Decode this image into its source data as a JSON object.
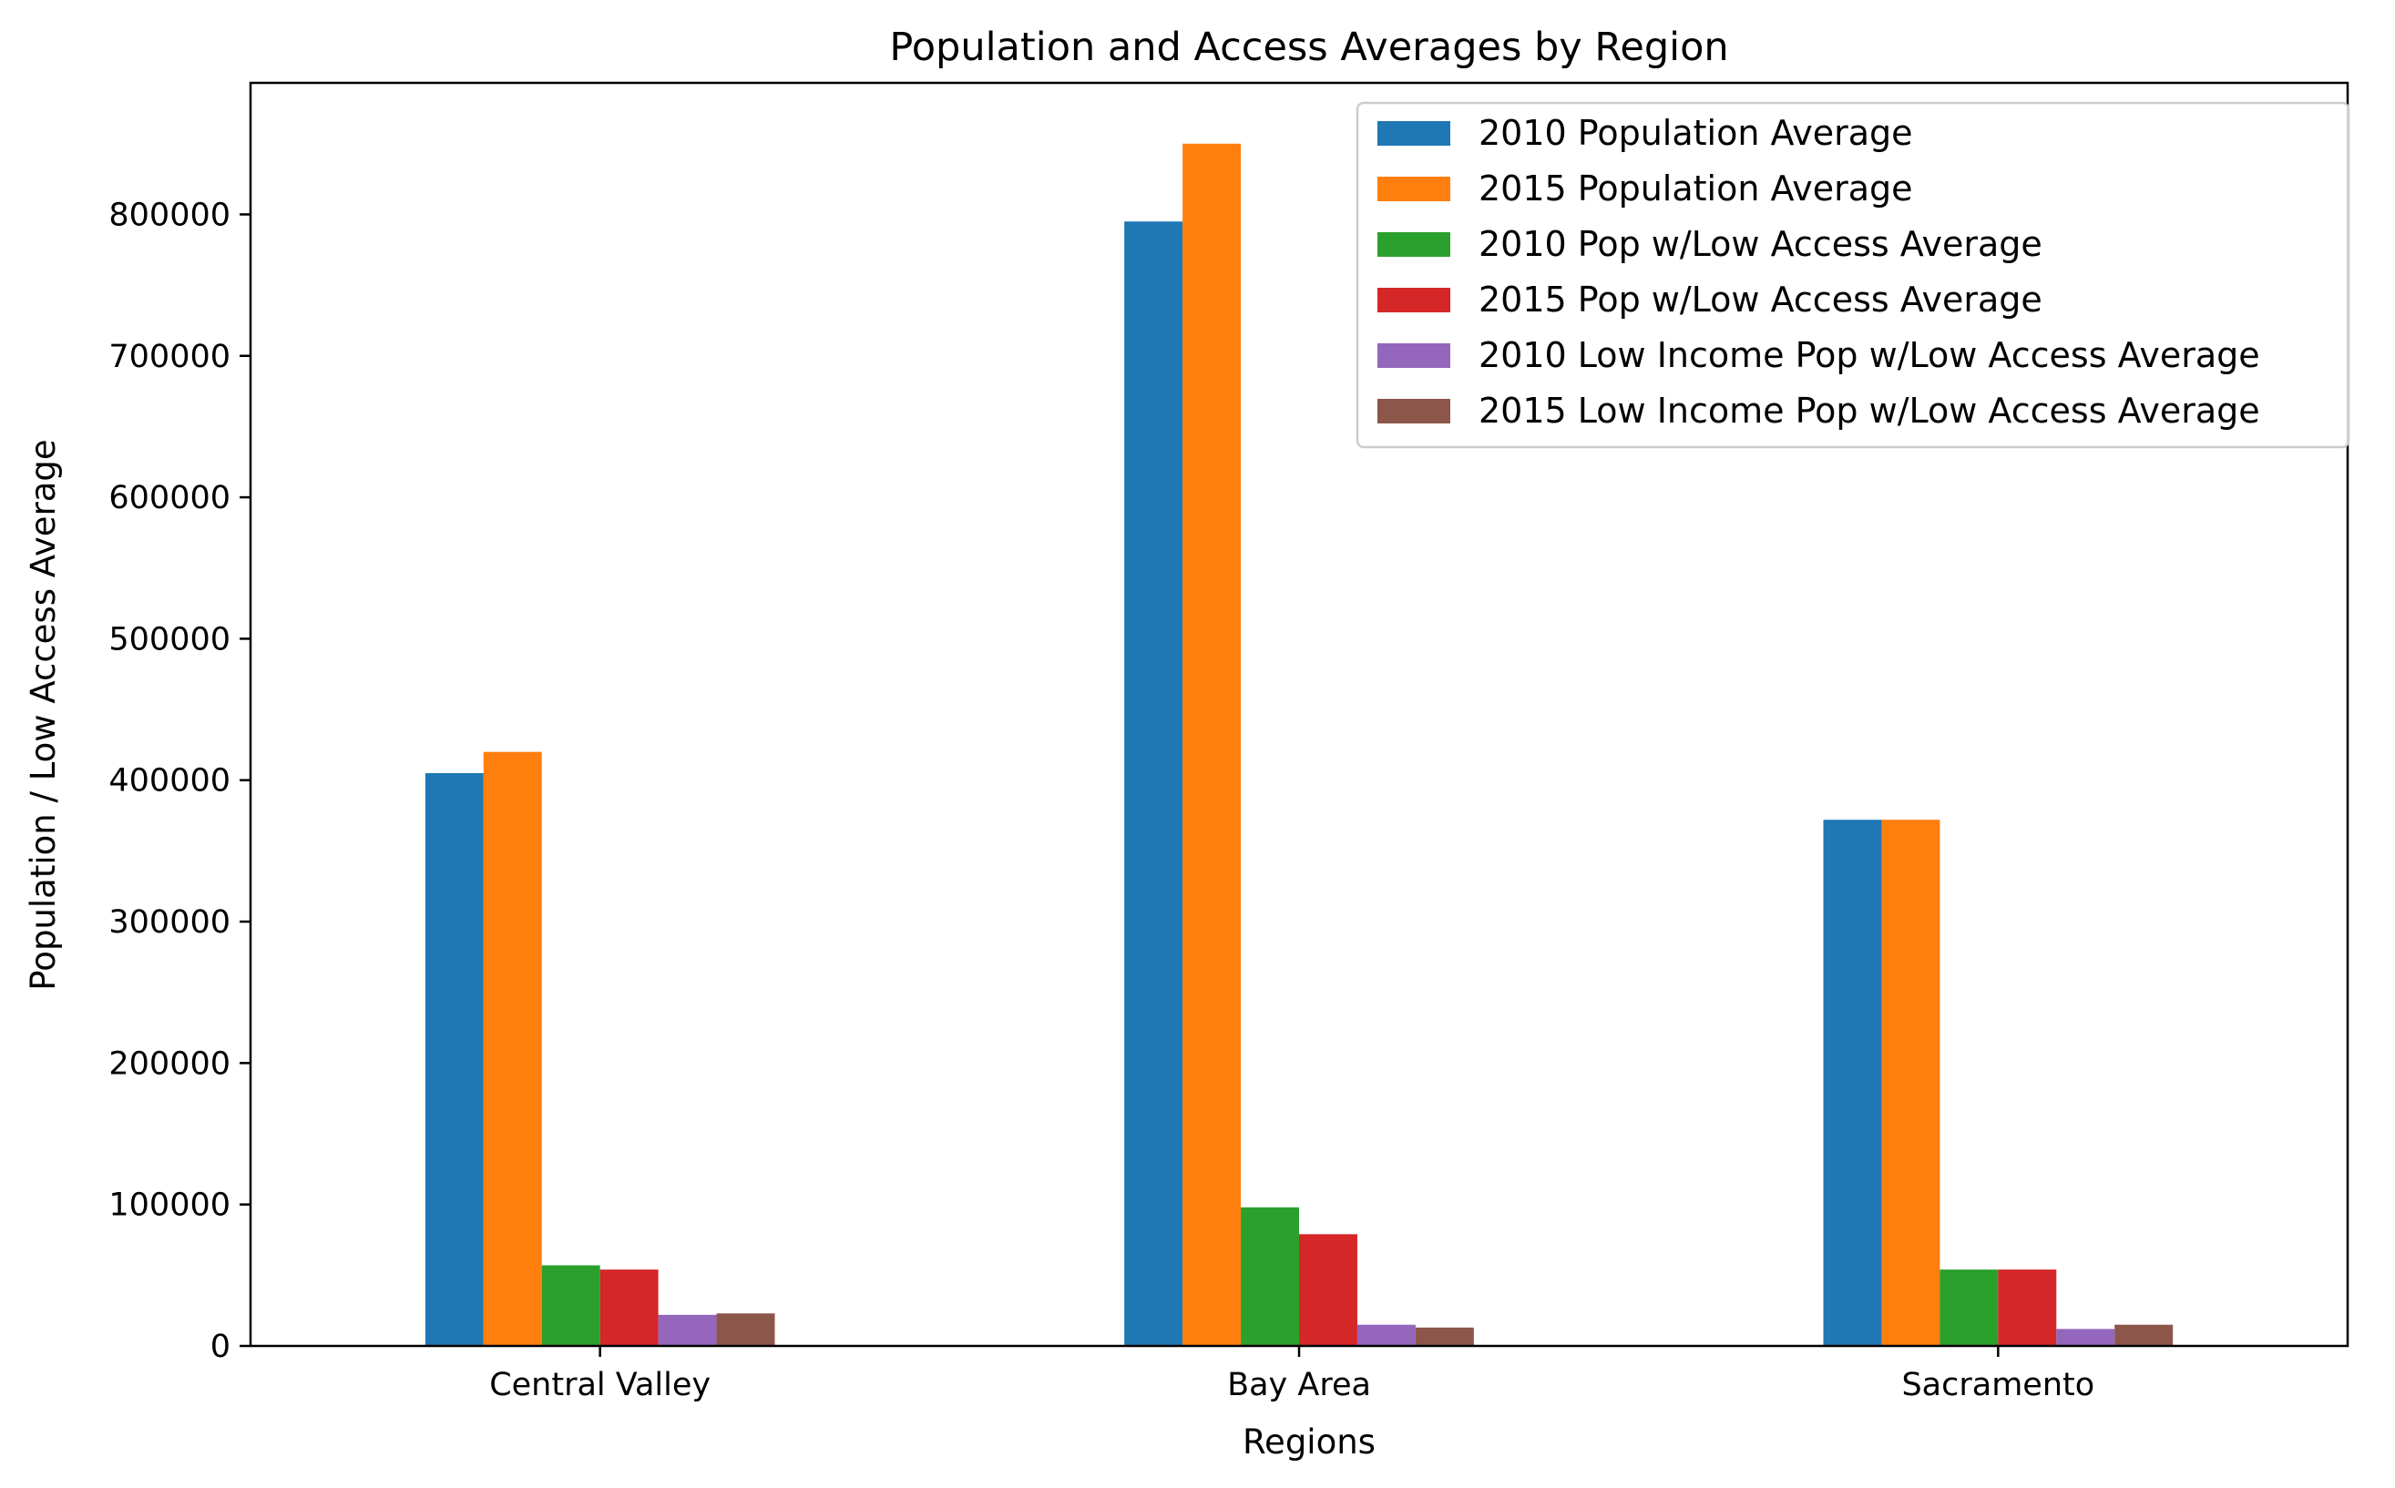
{
  "chart_data": {
    "type": "bar",
    "title": "Population and Access Averages by Region",
    "xlabel": "Regions",
    "ylabel": "Population / Low Access Average",
    "categories": [
      "Central Valley",
      "Bay Area",
      "Sacramento"
    ],
    "ylim": [
      0,
      893000
    ],
    "yticks": [
      0,
      100000,
      200000,
      300000,
      400000,
      500000,
      600000,
      700000,
      800000
    ],
    "ytick_labels": [
      "0",
      "100000",
      "200000",
      "300000",
      "400000",
      "500000",
      "600000",
      "700000",
      "800000"
    ],
    "grid": false,
    "legend_position": "top-right",
    "series": [
      {
        "name": "2010 Population Average",
        "color": "#1f77b4",
        "values": [
          405000,
          795000,
          372000
        ]
      },
      {
        "name": "2015 Population Average",
        "color": "#ff7f0e",
        "values": [
          420000,
          850000,
          372000
        ]
      },
      {
        "name": "2010 Pop w/Low Access Average",
        "color": "#2ca02c",
        "values": [
          57000,
          98000,
          54000
        ]
      },
      {
        "name": "2015 Pop w/Low Access Average",
        "color": "#d62728",
        "values": [
          54000,
          79000,
          54000
        ]
      },
      {
        "name": "2010 Low Income Pop w/Low Access Average",
        "color": "#9467bd",
        "values": [
          22000,
          15000,
          12000
        ]
      },
      {
        "name": "2015 Low Income Pop w/Low Access Average",
        "color": "#8c564b",
        "values": [
          23000,
          13000,
          15000
        ]
      }
    ]
  }
}
